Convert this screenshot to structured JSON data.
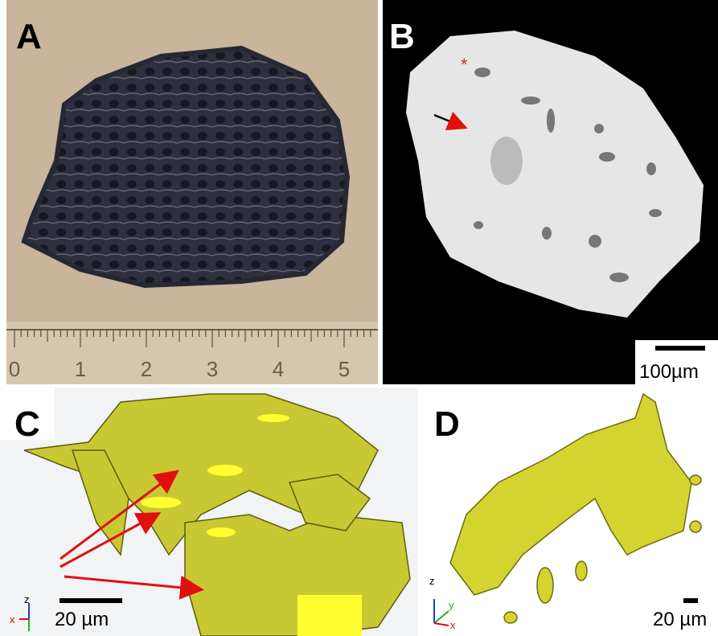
{
  "panels": [
    {
      "label": "A",
      "ruler_labels": [
        0,
        1,
        2,
        3,
        4,
        5
      ]
    },
    {
      "label": "B",
      "marker": "*",
      "scale_bar": "100µm"
    },
    {
      "label": "C",
      "scale_bar": "20 µm",
      "axes": [
        "z",
        "x"
      ]
    },
    {
      "label": "D",
      "scale_bar": "20 µm",
      "axes": [
        "z",
        "y",
        "x"
      ]
    }
  ]
}
